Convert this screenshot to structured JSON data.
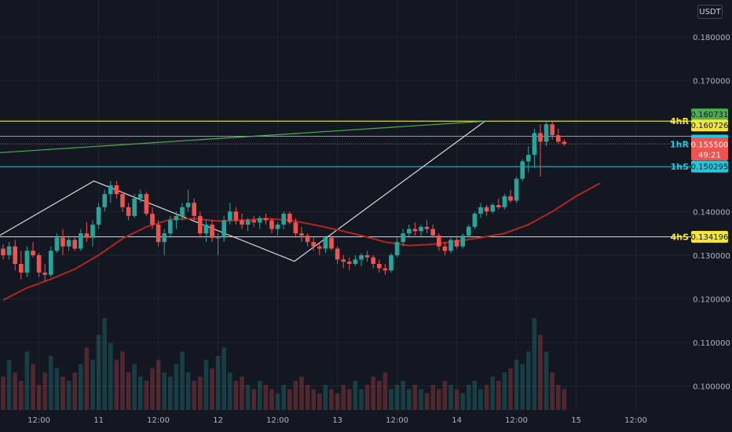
{
  "header": {
    "currency": "USDT"
  },
  "chart_data": {
    "type": "candlestick",
    "y_axis": {
      "range": [
        0.0945,
        0.1885
      ],
      "ticks": [
        "0.180000",
        "0.170000",
        "0.140000",
        "0.130000",
        "0.120000",
        "0.110000",
        "0.100000"
      ],
      "tick_values": [
        0.18,
        0.17,
        0.14,
        0.13,
        0.12,
        0.11,
        0.1
      ]
    },
    "x_axis": {
      "labels": [
        "12:00",
        "11",
        "12:00",
        "12",
        "12:00",
        "13",
        "12:00",
        "14",
        "12:00",
        "15",
        "12:00"
      ],
      "label_index": [
        6,
        16,
        26,
        36,
        46,
        56,
        66,
        76,
        86,
        96,
        106
      ]
    },
    "current_price": {
      "label": "0.155500",
      "countdown": "49:21",
      "value": 0.1555
    },
    "levels": [
      {
        "price": 0.160731,
        "label": "0.160731",
        "name": "",
        "color": "#4caf50"
      },
      {
        "price": 0.160726,
        "label": "0.160726",
        "name": "4hR",
        "color": "#f5e633"
      },
      {
        "price": 0.157257,
        "label": "0.157257",
        "name": "",
        "color": "#26c6da"
      },
      {
        "price": 0.150295,
        "label": "0.150295",
        "name": "1hS",
        "color": "#26c6da"
      },
      {
        "price": 0.134196,
        "label": "0.134196",
        "name": "4hS",
        "color": "#f5e633"
      }
    ],
    "level_annotations": [
      {
        "name": "1hR",
        "price": 0.1555,
        "color": "#26c6da"
      }
    ],
    "candles": [
      [
        0.1315,
        0.1325,
        0.129,
        0.13
      ],
      [
        0.13,
        0.133,
        0.129,
        0.132
      ],
      [
        0.132,
        0.1335,
        0.1265,
        0.128
      ],
      [
        0.128,
        0.131,
        0.1245,
        0.126
      ],
      [
        0.126,
        0.132,
        0.125,
        0.131
      ],
      [
        0.131,
        0.133,
        0.1295,
        0.13
      ],
      [
        0.13,
        0.1305,
        0.125,
        0.126
      ],
      [
        0.126,
        0.128,
        0.124,
        0.1255
      ],
      [
        0.1255,
        0.132,
        0.125,
        0.131
      ],
      [
        0.131,
        0.135,
        0.1305,
        0.134
      ],
      [
        0.134,
        0.136,
        0.13,
        0.132
      ],
      [
        0.132,
        0.1345,
        0.131,
        0.1335
      ],
      [
        0.1335,
        0.1345,
        0.131,
        0.1315
      ],
      [
        0.1315,
        0.136,
        0.131,
        0.135
      ],
      [
        0.135,
        0.1375,
        0.133,
        0.134
      ],
      [
        0.134,
        0.138,
        0.132,
        0.137
      ],
      [
        0.137,
        0.142,
        0.136,
        0.141
      ],
      [
        0.141,
        0.145,
        0.14,
        0.144
      ],
      [
        0.144,
        0.147,
        0.142,
        0.146
      ],
      [
        0.146,
        0.147,
        0.143,
        0.144
      ],
      [
        0.144,
        0.1445,
        0.14,
        0.141
      ],
      [
        0.141,
        0.142,
        0.138,
        0.139
      ],
      [
        0.139,
        0.144,
        0.1385,
        0.143
      ],
      [
        0.143,
        0.145,
        0.142,
        0.144
      ],
      [
        0.144,
        0.1445,
        0.139,
        0.1395
      ],
      [
        0.1395,
        0.141,
        0.136,
        0.137
      ],
      [
        0.137,
        0.138,
        0.132,
        0.133
      ],
      [
        0.133,
        0.136,
        0.13,
        0.135
      ],
      [
        0.135,
        0.139,
        0.134,
        0.138
      ],
      [
        0.138,
        0.14,
        0.136,
        0.139
      ],
      [
        0.139,
        0.142,
        0.138,
        0.141
      ],
      [
        0.141,
        0.145,
        0.14,
        0.142
      ],
      [
        0.142,
        0.143,
        0.138,
        0.139
      ],
      [
        0.139,
        0.14,
        0.134,
        0.135
      ],
      [
        0.135,
        0.138,
        0.133,
        0.137
      ],
      [
        0.137,
        0.138,
        0.133,
        0.134
      ],
      [
        0.134,
        0.135,
        0.13,
        0.134
      ],
      [
        0.134,
        0.139,
        0.133,
        0.138
      ],
      [
        0.138,
        0.142,
        0.137,
        0.14
      ],
      [
        0.14,
        0.141,
        0.137,
        0.138
      ],
      [
        0.138,
        0.1395,
        0.136,
        0.137
      ],
      [
        0.137,
        0.1385,
        0.1355,
        0.138
      ],
      [
        0.138,
        0.139,
        0.1365,
        0.1375
      ],
      [
        0.1375,
        0.139,
        0.136,
        0.1385
      ],
      [
        0.1385,
        0.1395,
        0.137,
        0.138
      ],
      [
        0.138,
        0.1385,
        0.135,
        0.136
      ],
      [
        0.136,
        0.1375,
        0.1345,
        0.137
      ],
      [
        0.137,
        0.14,
        0.136,
        0.1395
      ],
      [
        0.1395,
        0.14,
        0.137,
        0.1375
      ],
      [
        0.1375,
        0.1385,
        0.134,
        0.135
      ],
      [
        0.135,
        0.1365,
        0.133,
        0.1345
      ],
      [
        0.1345,
        0.135,
        0.132,
        0.133
      ],
      [
        0.133,
        0.134,
        0.131,
        0.132
      ],
      [
        0.132,
        0.133,
        0.13,
        0.1315
      ],
      [
        0.1315,
        0.1345,
        0.1305,
        0.134
      ],
      [
        0.134,
        0.1345,
        0.131,
        0.1315
      ],
      [
        0.1315,
        0.132,
        0.128,
        0.129
      ],
      [
        0.129,
        0.13,
        0.127,
        0.1285
      ],
      [
        0.1285,
        0.1295,
        0.1265,
        0.128
      ],
      [
        0.128,
        0.13,
        0.1275,
        0.129
      ],
      [
        0.129,
        0.1305,
        0.1275,
        0.13
      ],
      [
        0.13,
        0.131,
        0.1285,
        0.1295
      ],
      [
        0.1295,
        0.13,
        0.127,
        0.128
      ],
      [
        0.128,
        0.129,
        0.126,
        0.127
      ],
      [
        0.127,
        0.128,
        0.1255,
        0.1265
      ],
      [
        0.1265,
        0.1305,
        0.126,
        0.13
      ],
      [
        0.13,
        0.134,
        0.1295,
        0.133
      ],
      [
        0.133,
        0.136,
        0.132,
        0.135
      ],
      [
        0.135,
        0.137,
        0.134,
        0.136
      ],
      [
        0.136,
        0.1375,
        0.1345,
        0.1355
      ],
      [
        0.1355,
        0.137,
        0.134,
        0.1365
      ],
      [
        0.1365,
        0.138,
        0.135,
        0.136
      ],
      [
        0.136,
        0.137,
        0.134,
        0.1345
      ],
      [
        0.1345,
        0.135,
        0.131,
        0.132
      ],
      [
        0.132,
        0.133,
        0.13,
        0.131
      ],
      [
        0.131,
        0.134,
        0.1305,
        0.1335
      ],
      [
        0.1335,
        0.1345,
        0.1315,
        0.132
      ],
      [
        0.132,
        0.135,
        0.1315,
        0.1345
      ],
      [
        0.1345,
        0.137,
        0.134,
        0.1365
      ],
      [
        0.1365,
        0.14,
        0.136,
        0.1395
      ],
      [
        0.1395,
        0.142,
        0.1385,
        0.141
      ],
      [
        0.141,
        0.1415,
        0.139,
        0.14
      ],
      [
        0.14,
        0.142,
        0.1395,
        0.1415
      ],
      [
        0.1415,
        0.143,
        0.1405,
        0.141
      ],
      [
        0.141,
        0.144,
        0.1405,
        0.1435
      ],
      [
        0.1435,
        0.145,
        0.142,
        0.1425
      ],
      [
        0.1425,
        0.148,
        0.142,
        0.1475
      ],
      [
        0.1475,
        0.152,
        0.147,
        0.1515
      ],
      [
        0.1515,
        0.155,
        0.149,
        0.153
      ],
      [
        0.153,
        0.159,
        0.15,
        0.158
      ],
      [
        0.158,
        0.16,
        0.148,
        0.156
      ],
      [
        0.156,
        0.161,
        0.155,
        0.16
      ],
      [
        0.16,
        0.1607,
        0.1565,
        0.1575
      ],
      [
        0.1575,
        0.159,
        0.1555,
        0.156
      ],
      [
        0.156,
        0.1565,
        0.155,
        0.1555
      ]
    ],
    "ma": [
      [
        0,
        0.1197
      ],
      [
        4,
        0.1225
      ],
      [
        8,
        0.1245
      ],
      [
        12,
        0.1268
      ],
      [
        16,
        0.13
      ],
      [
        20,
        0.1338
      ],
      [
        24,
        0.1365
      ],
      [
        28,
        0.1382
      ],
      [
        32,
        0.1384
      ],
      [
        36,
        0.1378
      ],
      [
        40,
        0.138
      ],
      [
        44,
        0.1384
      ],
      [
        48,
        0.138
      ],
      [
        52,
        0.137
      ],
      [
        56,
        0.1358
      ],
      [
        60,
        0.1345
      ],
      [
        64,
        0.133
      ],
      [
        68,
        0.1322
      ],
      [
        72,
        0.1325
      ],
      [
        76,
        0.1332
      ],
      [
        80,
        0.134
      ],
      [
        84,
        0.135
      ],
      [
        88,
        0.137
      ],
      [
        92,
        0.14
      ],
      [
        96,
        0.1435
      ],
      [
        100,
        0.1465
      ]
    ],
    "volume": [
      8,
      12,
      9,
      7,
      14,
      11,
      6,
      9,
      13,
      10,
      8,
      7,
      9,
      11,
      15,
      12,
      18,
      22,
      16,
      12,
      14,
      9,
      11,
      8,
      7,
      10,
      12,
      9,
      8,
      11,
      14,
      9,
      7,
      8,
      12,
      10,
      13,
      15,
      9,
      7,
      8,
      6,
      5,
      7,
      6,
      5,
      4,
      6,
      5,
      7,
      8,
      6,
      5,
      4,
      6,
      5,
      4,
      6,
      5,
      7,
      5,
      6,
      8,
      7,
      9,
      5,
      6,
      7,
      5,
      6,
      5,
      4,
      6,
      5,
      7,
      6,
      5,
      4,
      6,
      7,
      5,
      6,
      8,
      7,
      9,
      10,
      12,
      11,
      14,
      22,
      18,
      14,
      9,
      6,
      5
    ],
    "volume_max": 22,
    "trend_lines": [
      {
        "points": [
          [
            -0.6,
            0.1345
          ],
          [
            15.2,
            0.147
          ],
          [
            48.8,
            0.1286
          ],
          [
            80.7,
            0.1607
          ]
        ],
        "color": "#d8d8d8"
      },
      {
        "points": [
          [
            -0.6,
            0.1535
          ],
          [
            80.7,
            0.1607
          ]
        ],
        "color": "#4caf50"
      }
    ]
  }
}
